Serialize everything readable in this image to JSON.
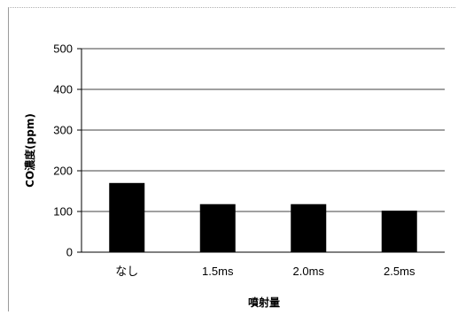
{
  "chart_data": {
    "type": "bar",
    "categories": [
      "なし",
      "1.5ms",
      "2.0ms",
      "2.5ms"
    ],
    "values": [
      170,
      118,
      118,
      102
    ],
    "ylim": [
      0,
      500
    ],
    "yticks": [
      "500",
      "400",
      "300",
      "200",
      "100",
      "0"
    ],
    "ylabel": "CO濃度(ppm)",
    "xlabel": "噴射量",
    "grid": true,
    "bar_color": "#000000"
  }
}
